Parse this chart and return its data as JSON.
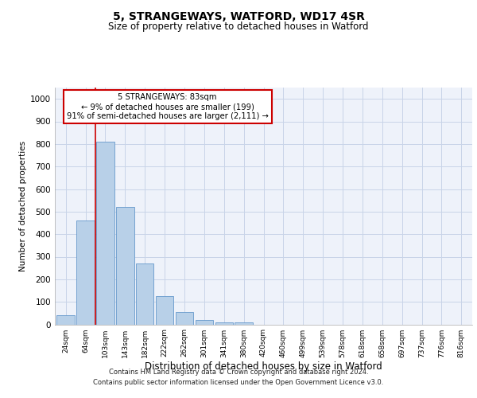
{
  "title1": "5, STRANGEWAYS, WATFORD, WD17 4SR",
  "title2": "Size of property relative to detached houses in Watford",
  "xlabel": "Distribution of detached houses by size in Watford",
  "ylabel": "Number of detached properties",
  "bar_labels": [
    "24sqm",
    "64sqm",
    "103sqm",
    "143sqm",
    "182sqm",
    "222sqm",
    "262sqm",
    "301sqm",
    "341sqm",
    "380sqm",
    "420sqm",
    "460sqm",
    "499sqm",
    "539sqm",
    "578sqm",
    "618sqm",
    "658sqm",
    "697sqm",
    "737sqm",
    "776sqm",
    "816sqm"
  ],
  "bar_values": [
    40,
    460,
    810,
    520,
    270,
    125,
    55,
    20,
    10,
    10,
    0,
    0,
    0,
    0,
    0,
    0,
    0,
    0,
    0,
    0,
    0
  ],
  "bar_color": "#b8d0e8",
  "bar_edgecolor": "#6699cc",
  "vline_x": 1.5,
  "vline_color": "#cc0000",
  "annotation_text": "5 STRANGEWAYS: 83sqm\n← 9% of detached houses are smaller (199)\n91% of semi-detached houses are larger (2,111) →",
  "annotation_box_color": "#ffffff",
  "annotation_box_edge": "#cc0000",
  "ylim": [
    0,
    1050
  ],
  "yticks": [
    0,
    100,
    200,
    300,
    400,
    500,
    600,
    700,
    800,
    900,
    1000
  ],
  "footer1": "Contains HM Land Registry data © Crown copyright and database right 2024.",
  "footer2": "Contains public sector information licensed under the Open Government Licence v3.0.",
  "bg_color": "#eef2fa",
  "grid_color": "#c8d4e8",
  "title1_fontsize": 10,
  "title2_fontsize": 8.5,
  "ylabel_fontsize": 7.5,
  "xlabel_fontsize": 8.5,
  "ytick_fontsize": 7.5,
  "xtick_fontsize": 6.5,
  "ann_fontsize": 7.2,
  "footer_fontsize": 6.0
}
